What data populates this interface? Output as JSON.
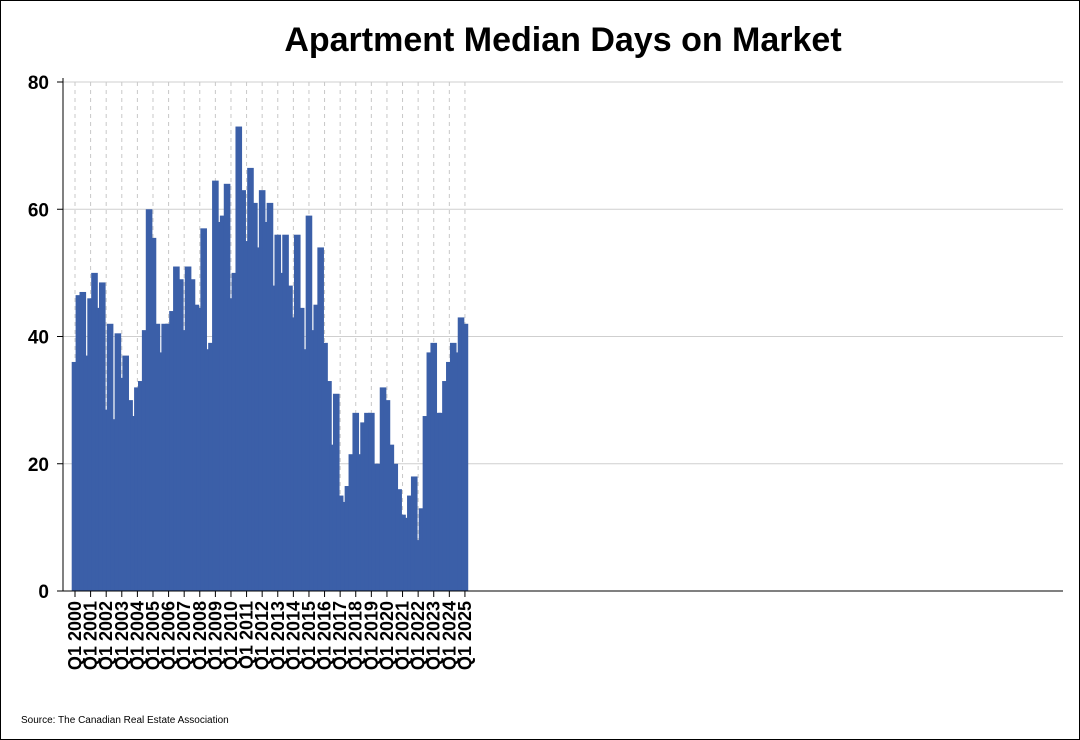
{
  "chart_data": {
    "type": "bar",
    "title": "Apartment Median Days on Market",
    "source": "Source: The Canadian Real Estate Association",
    "ylim": [
      0,
      80
    ],
    "yticks": [
      0,
      20,
      40,
      60,
      80
    ],
    "grid": {
      "horizontal": "solid",
      "vertical": "dashed"
    },
    "bar_color": "#3b5fa8",
    "x_tick_labels": [
      "Q1 2000",
      "Q1 2001",
      "Q1 2002",
      "Q1 2003",
      "Q1 2004",
      "Q1 2005",
      "Q1 2006",
      "Q1 2007",
      "Q1 2008",
      "Q1 2009",
      "Q1 2010",
      "Q1 2011",
      "Q1 2012",
      "Q1 2013",
      "Q1 2014",
      "Q1 2015",
      "Q1 2016",
      "Q1 2017",
      "Q1 2018",
      "Q1 2019",
      "Q1 2020",
      "Q1 2021",
      "Q1 2022",
      "Q1 2023",
      "Q1 2024",
      "Q1 2025"
    ],
    "categories": [
      "Q1 2000",
      "Q2 2000",
      "Q3 2000",
      "Q4 2000",
      "Q1 2001",
      "Q2 2001",
      "Q3 2001",
      "Q4 2001",
      "Q1 2002",
      "Q2 2002",
      "Q3 2002",
      "Q4 2002",
      "Q1 2003",
      "Q2 2003",
      "Q3 2003",
      "Q4 2003",
      "Q1 2004",
      "Q2 2004",
      "Q3 2004",
      "Q4 2004",
      "Q1 2005",
      "Q2 2005",
      "Q3 2005",
      "Q4 2005",
      "Q1 2006",
      "Q2 2006",
      "Q3 2006",
      "Q4 2006",
      "Q1 2007",
      "Q2 2007",
      "Q3 2007",
      "Q4 2007",
      "Q1 2008",
      "Q2 2008",
      "Q3 2008",
      "Q4 2008",
      "Q1 2009",
      "Q2 2009",
      "Q3 2009",
      "Q4 2009",
      "Q1 2010",
      "Q2 2010",
      "Q3 2010",
      "Q4 2010",
      "Q1 2011",
      "Q2 2011",
      "Q3 2011",
      "Q4 2011",
      "Q1 2012",
      "Q2 2012",
      "Q3 2012",
      "Q4 2012",
      "Q1 2013",
      "Q2 2013",
      "Q3 2013",
      "Q4 2013",
      "Q1 2014",
      "Q2 2014",
      "Q3 2014",
      "Q4 2014",
      "Q1 2015",
      "Q2 2015",
      "Q3 2015",
      "Q4 2015",
      "Q1 2016",
      "Q2 2016",
      "Q3 2016",
      "Q4 2016",
      "Q1 2017",
      "Q2 2017",
      "Q3 2017",
      "Q4 2017",
      "Q1 2018",
      "Q2 2018",
      "Q3 2018",
      "Q4 2018",
      "Q1 2019",
      "Q2 2019",
      "Q3 2019",
      "Q4 2019",
      "Q1 2020",
      "Q2 2020",
      "Q3 2020",
      "Q4 2020",
      "Q1 2021",
      "Q2 2021",
      "Q3 2021",
      "Q4 2021",
      "Q1 2022",
      "Q2 2022",
      "Q3 2022",
      "Q4 2022",
      "Q1 2023",
      "Q2 2023",
      "Q3 2023",
      "Q4 2023",
      "Q1 2024",
      "Q2 2024",
      "Q3 2024",
      "Q4 2024",
      "Q1 2025"
    ],
    "values": [
      36,
      46.5,
      47,
      37,
      46,
      50,
      44.5,
      48.5,
      28.5,
      42,
      27,
      40.5,
      33.5,
      37,
      30,
      27.5,
      32,
      33,
      41,
      60,
      55.5,
      42,
      37.5,
      42,
      42,
      44,
      51,
      49,
      41,
      51,
      49,
      45,
      44.5,
      57,
      38,
      39,
      64.5,
      58,
      59,
      64,
      46,
      50,
      73,
      63,
      55,
      66.5,
      61,
      54,
      63,
      58,
      61,
      48,
      56,
      50,
      56,
      48,
      43,
      56,
      44.5,
      38,
      59,
      41,
      45,
      54,
      39,
      33,
      23,
      31,
      15,
      14,
      16.5,
      21.5,
      28,
      21.5,
      26.5,
      28,
      28,
      20,
      20,
      32,
      30,
      23,
      20,
      16,
      12,
      11.5,
      15,
      18,
      8,
      13,
      27.5,
      37.5,
      39,
      28,
      28,
      33,
      36,
      39,
      37.5,
      43,
      42
    ]
  }
}
